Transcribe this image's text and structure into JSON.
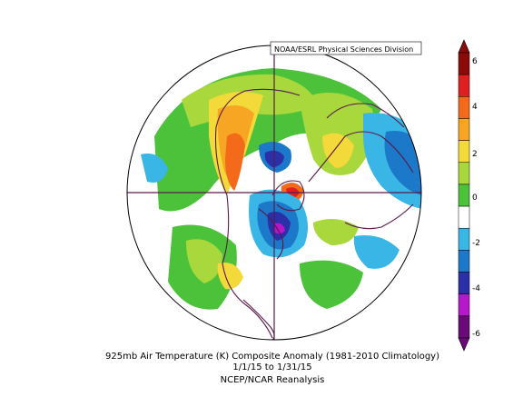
{
  "credit": "NOAA/ESRL Physical Sciences Division",
  "caption": {
    "line1": "925mb Air Temperature (K) Composite Anomaly (1981-2010 Climatology)",
    "line2": "1/1/15  to 1/31/15",
    "line3": "NCEP/NCAR Reanalysis"
  },
  "colorbar": {
    "ticks": [
      "6",
      "4",
      "2",
      "0",
      "-2",
      "-4",
      "-6"
    ],
    "colors": [
      "#8b0a0a",
      "#e02020",
      "#f26a1a",
      "#f6a623",
      "#f4d93a",
      "#a8d83c",
      "#4cc23a",
      "#ffffff",
      "#39b6e6",
      "#1c78c8",
      "#2b2fa8",
      "#b418c8",
      "#6a0a78"
    ]
  },
  "map": {
    "projection": "north polar stereographic",
    "land_outline_color": "#5a1a4a",
    "graticule_color": "#5a1a4a"
  }
}
